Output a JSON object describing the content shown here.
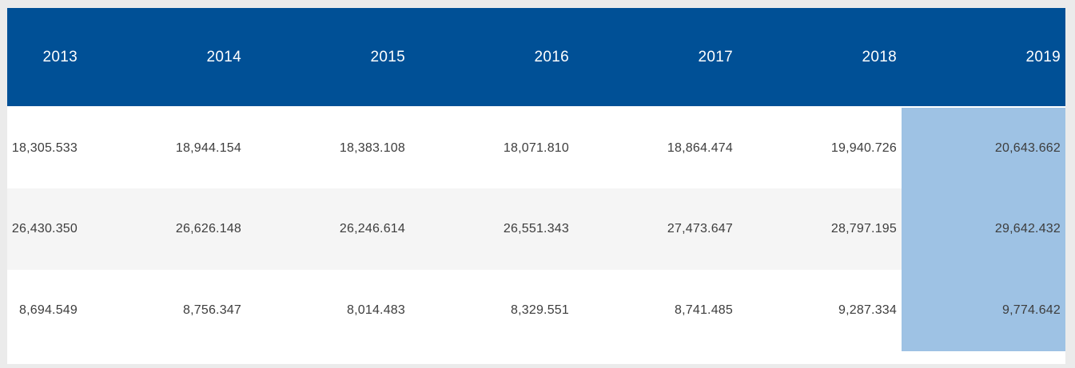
{
  "page": {
    "background_color": "#ebebeb"
  },
  "table": {
    "header": {
      "background_color": "#005096",
      "text_color": "#ffffff",
      "columns": [
        "2013",
        "2014",
        "2015",
        "2016",
        "2017",
        "2018",
        "2019"
      ]
    },
    "highlight": {
      "column": "2019",
      "column_index": 6,
      "color": "#9ec2e4"
    },
    "zebra_row_color": "#f5f5f5",
    "body_text_color": "#3d3d3d",
    "rows": [
      {
        "cells": [
          "18,305.533",
          "18,944.154",
          "18,383.108",
          "18,071.810",
          "18,864.474",
          "19,940.726",
          "20,643.662"
        ]
      },
      {
        "cells": [
          "26,430.350",
          "26,626.148",
          "26,246.614",
          "26,551.343",
          "27,473.647",
          "28,797.195",
          "29,642.432"
        ]
      },
      {
        "cells": [
          "8,694.549",
          "8,756.347",
          "8,014.483",
          "8,329.551",
          "8,741.485",
          "9,287.334",
          "9,774.642"
        ]
      }
    ]
  },
  "chart_data": {
    "type": "table",
    "categories": [
      "2013",
      "2014",
      "2015",
      "2016",
      "2017",
      "2018",
      "2019"
    ],
    "series": [
      {
        "name": "row-1",
        "values": [
          18305.533,
          18944.154,
          18383.108,
          18071.81,
          18864.474,
          19940.726,
          20643.662
        ]
      },
      {
        "name": "row-2",
        "values": [
          26430.35,
          26626.148,
          26246.614,
          26551.343,
          27473.647,
          28797.195,
          29642.432
        ]
      },
      {
        "name": "row-3",
        "values": [
          8694.549,
          8756.347,
          8014.483,
          8329.551,
          8741.485,
          9287.334,
          9774.642
        ]
      }
    ],
    "highlighted_column": "2019",
    "layout_hints": {
      "header_position": "top",
      "cell_alignment": "right",
      "zebra_striping": true
    }
  }
}
